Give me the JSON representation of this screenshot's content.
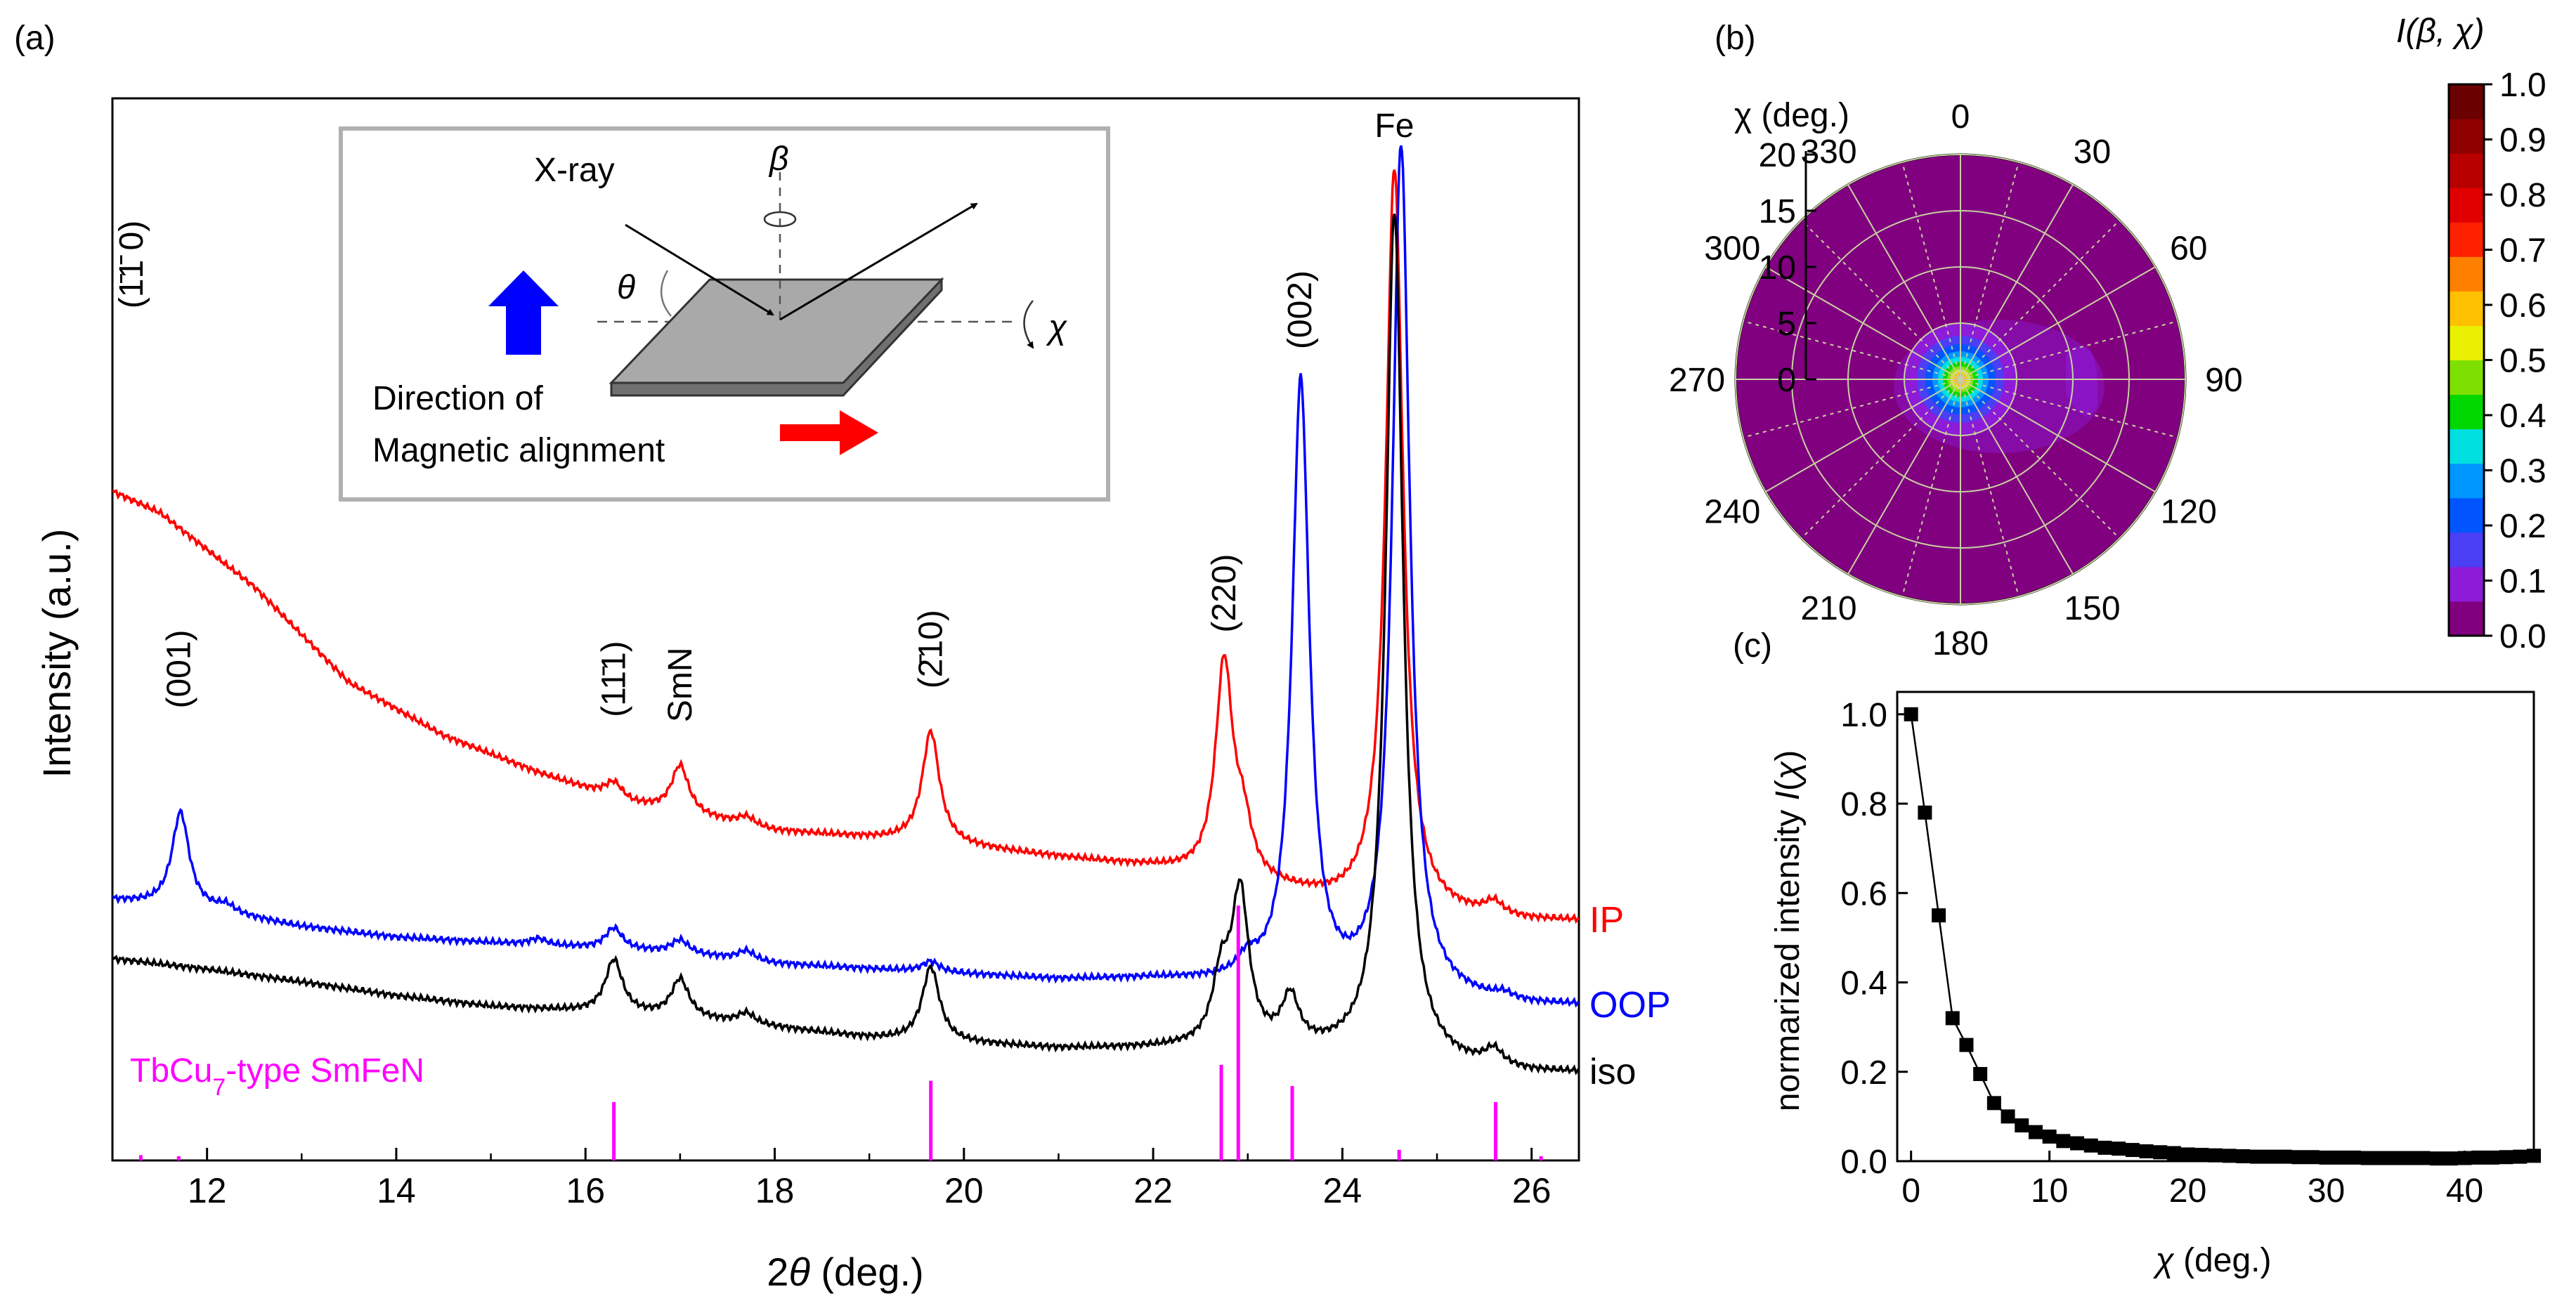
{
  "panel_labels": {
    "a": "(a)",
    "b": "(b)",
    "c": "(c)"
  },
  "colors": {
    "ip": "#ff0000",
    "oop": "#0000ff",
    "iso": "#000000",
    "ref": "#ff00ff",
    "inset_border": "#b0b0b0",
    "sample": "#a9a9a9",
    "grid": "#c8d0a0"
  },
  "inset": {
    "xray_label": "X-ray",
    "beta_symbol": "β",
    "theta_symbol": "θ",
    "chi_symbol": "χ",
    "caption_line1": "Direction of",
    "caption_line2": "Magnetic alignment"
  },
  "peak_labels": [
    {
      "text": "(1̄1̄ 0)",
      "x": 11.2
    },
    {
      "text": "(001)",
      "x": 11.7
    },
    {
      "text": "(11̄1)",
      "x": 16.3
    },
    {
      "text": "SmN",
      "x": 17.0
    },
    {
      "text": "(2̄10)",
      "x": 19.65
    },
    {
      "text": "(220)",
      "x": 22.75
    },
    {
      "text": "(002)",
      "x": 23.55
    },
    {
      "text": "Fe",
      "x": 24.55
    }
  ],
  "chart_data": [
    {
      "panel": "a",
      "type": "line",
      "xlabel": "2θ (deg.)",
      "ylabel": "Intensity (a.u.)",
      "xlim": [
        11,
        26.5
      ],
      "ylim": [
        0,
        100
      ],
      "xticks": [
        12,
        14,
        16,
        18,
        20,
        22,
        24,
        26
      ],
      "peak_width": 0.11,
      "series": [
        {
          "name": "IP",
          "color": "#ff0000",
          "label": "IP",
          "background": [
            [
              11.0,
              63
            ],
            [
              11.5,
              61
            ],
            [
              12.5,
              54
            ],
            [
              13.5,
              45
            ],
            [
              14.5,
              40
            ],
            [
              15.5,
              36.5
            ],
            [
              16.5,
              33.5
            ],
            [
              18,
              31
            ],
            [
              19.5,
              30
            ],
            [
              21,
              28.5
            ],
            [
              22,
              27.5
            ],
            [
              23,
              26
            ],
            [
              24,
              24
            ],
            [
              25,
              23
            ],
            [
              26,
              22.5
            ],
            [
              26.5,
              22.5
            ]
          ],
          "peaks": [
            [
              16.3,
              1.5
            ],
            [
              17.0,
              4.5
            ],
            [
              17.7,
              0.8
            ],
            [
              19.65,
              10.5
            ],
            [
              22.75,
              20
            ],
            [
              22.95,
              4.5
            ],
            [
              24.55,
              70
            ],
            [
              25.6,
              1.2
            ]
          ]
        },
        {
          "name": "OOP",
          "color": "#0000ff",
          "label": "OOP",
          "background": [
            [
              11.0,
              24.5
            ],
            [
              12,
              23.5
            ],
            [
              13,
              22
            ],
            [
              14,
              21
            ],
            [
              15,
              20.5
            ],
            [
              16,
              20
            ],
            [
              17,
              19.5
            ],
            [
              18,
              18.5
            ],
            [
              19,
              18
            ],
            [
              20,
              17.5
            ],
            [
              21,
              17
            ],
            [
              22,
              17
            ],
            [
              23,
              16.5
            ],
            [
              24,
              15.5
            ],
            [
              25,
              15
            ],
            [
              26,
              14.5
            ],
            [
              26.5,
              14.5
            ]
          ],
          "peaks": [
            [
              11.72,
              9
            ],
            [
              12.2,
              0.7
            ],
            [
              15.5,
              0.6
            ],
            [
              16.3,
              2
            ],
            [
              17.0,
              1.2
            ],
            [
              17.7,
              0.9
            ],
            [
              19.65,
              1
            ],
            [
              23.0,
              1.5
            ],
            [
              23.56,
              57
            ],
            [
              24.62,
              80
            ],
            [
              25.7,
              0.5
            ]
          ]
        },
        {
          "name": "iso",
          "color": "#000000",
          "label": "iso",
          "background": [
            [
              11.0,
              19
            ],
            [
              12,
              18
            ],
            [
              13,
              16.8
            ],
            [
              14,
              15.5
            ],
            [
              15,
              14.5
            ],
            [
              16,
              14
            ],
            [
              17,
              13.5
            ],
            [
              18,
              12.5
            ],
            [
              19,
              11.5
            ],
            [
              20,
              11
            ],
            [
              21,
              10.5
            ],
            [
              22,
              10.5
            ],
            [
              23,
              10.5
            ],
            [
              24,
              9.8
            ],
            [
              25,
              8.8
            ],
            [
              26,
              8.2
            ],
            [
              26.5,
              8.2
            ]
          ],
          "peaks": [
            [
              16.3,
              5
            ],
            [
              17.0,
              3.5
            ],
            [
              17.7,
              1
            ],
            [
              19.65,
              7
            ],
            [
              22.72,
              6
            ],
            [
              22.92,
              14
            ],
            [
              23.45,
              4.5
            ],
            [
              24.55,
              80
            ],
            [
              25.6,
              1.5
            ]
          ]
        },
        {
          "name": "TbCu7-type SmFeN",
          "color": "#ff00ff",
          "type": "stick",
          "label_prefix": "TbCu",
          "label_sub": "7",
          "label_suffix": "-type SmFeN",
          "x": [
            11.3,
            11.7,
            16.3,
            19.65,
            22.72,
            22.9,
            23.47,
            24.6,
            25.62,
            26.1
          ],
          "y": [
            0.5,
            0.4,
            5.5,
            7.5,
            9,
            24,
            7,
            1,
            5.5,
            0.4
          ]
        }
      ]
    },
    {
      "panel": "b",
      "type": "heatmap",
      "title": "I(β, χ)",
      "projection": "polar",
      "radial_label": "χ (deg.)",
      "radial_ticks": [
        0,
        5,
        10,
        15,
        20
      ],
      "angular_ticks": [
        0,
        30,
        60,
        90,
        120,
        150,
        180,
        210,
        240,
        270,
        300,
        330
      ],
      "colorbar_ticks": [
        0.0,
        0.1,
        0.2,
        0.3,
        0.4,
        0.5,
        0.6,
        0.7,
        0.8,
        0.9,
        1.0
      ],
      "colorbar_levels": [
        "#800080",
        "#8e1bd8",
        "#4b3ff5",
        "#0055ff",
        "#0096ff",
        "#00e0e0",
        "#00d800",
        "#7ee000",
        "#e8f000",
        "#ffc000",
        "#ff8000",
        "#ff2000",
        "#e00000",
        "#b80000",
        "#900000",
        "#6a0000"
      ]
    },
    {
      "panel": "c",
      "type": "scatter",
      "xlabel": "χ (deg.)",
      "ylabel": "normarized intensity I(χ)",
      "xlim": [
        -1,
        45
      ],
      "ylim": [
        0,
        1.05
      ],
      "xticks": [
        0,
        10,
        20,
        30,
        40
      ],
      "yticks": [
        0.0,
        0.2,
        0.4,
        0.6,
        0.8,
        1.0
      ],
      "x": [
        0,
        1,
        2,
        3,
        4,
        5,
        6,
        7,
        8,
        9,
        10,
        11,
        12,
        13,
        14,
        15,
        16,
        17,
        18,
        19,
        20,
        21,
        22,
        23,
        24,
        25,
        26,
        27,
        28,
        29,
        30,
        31,
        32,
        33,
        34,
        35,
        36,
        37,
        38,
        39,
        40,
        41,
        42,
        43,
        44,
        45
      ],
      "y": [
        1.0,
        0.78,
        0.55,
        0.32,
        0.26,
        0.195,
        0.13,
        0.1,
        0.08,
        0.065,
        0.055,
        0.045,
        0.04,
        0.035,
        0.03,
        0.028,
        0.025,
        0.022,
        0.02,
        0.018,
        0.015,
        0.014,
        0.013,
        0.012,
        0.011,
        0.01,
        0.01,
        0.01,
        0.009,
        0.009,
        0.008,
        0.008,
        0.008,
        0.007,
        0.007,
        0.007,
        0.007,
        0.007,
        0.006,
        0.006,
        0.007,
        0.008,
        0.008,
        0.009,
        0.01,
        0.012
      ]
    }
  ]
}
